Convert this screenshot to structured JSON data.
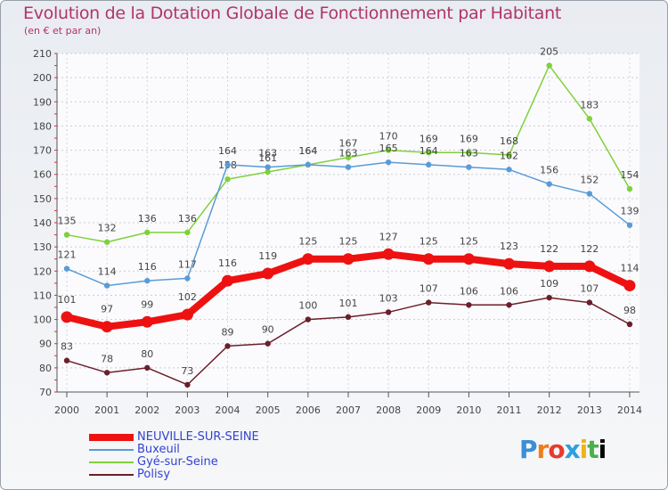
{
  "chart_data": {
    "type": "line",
    "title": "Evolution de la Dotation Globale de Fonctionnement par Habitant",
    "subtitle": "(en € et par an)",
    "xlabel": "",
    "ylabel": "",
    "ylim": [
      70,
      210
    ],
    "yticks": [
      "70",
      "80",
      "90",
      "100",
      "110",
      "120",
      "130",
      "140",
      "150",
      "160",
      "170",
      "180",
      "190",
      "200",
      "210"
    ],
    "categories": [
      "2000",
      "2001",
      "2002",
      "2003",
      "2004",
      "2005",
      "2006",
      "2007",
      "2008",
      "2009",
      "2010",
      "2011",
      "2012",
      "2013",
      "2014"
    ],
    "grid": true,
    "legend_position": "bottom-left",
    "series": [
      {
        "name": "Gyé-sur-Seine",
        "color": "#7fd13b",
        "values": [
          135,
          132,
          136,
          136,
          158,
          161,
          164,
          167,
          170,
          169,
          169,
          168,
          205,
          183,
          154
        ]
      },
      {
        "name": "Buxeuil",
        "color": "#5b9bd5",
        "values": [
          121,
          114,
          116,
          117,
          164,
          163,
          164,
          163,
          165,
          164,
          163,
          162,
          156,
          152,
          139
        ]
      },
      {
        "name": "Polisy",
        "color": "#6b1f2a",
        "values": [
          83,
          78,
          80,
          73,
          89,
          90,
          100,
          101,
          103,
          107,
          106,
          106,
          109,
          107,
          98
        ]
      },
      {
        "name": "NEUVILLE-SUR-SEINE",
        "color": "#ee1111",
        "values": [
          101,
          97,
          99,
          102,
          116,
          119,
          125,
          125,
          127,
          125,
          125,
          123,
          122,
          122,
          114
        ]
      }
    ],
    "legend_order": [
      "NEUVILLE-SUR-SEINE",
      "Buxeuil",
      "Gyé-sur-Seine",
      "Polisy"
    ]
  },
  "logo": {
    "letters": [
      "P",
      "r",
      "o",
      "x",
      "i",
      "t",
      "i"
    ]
  }
}
